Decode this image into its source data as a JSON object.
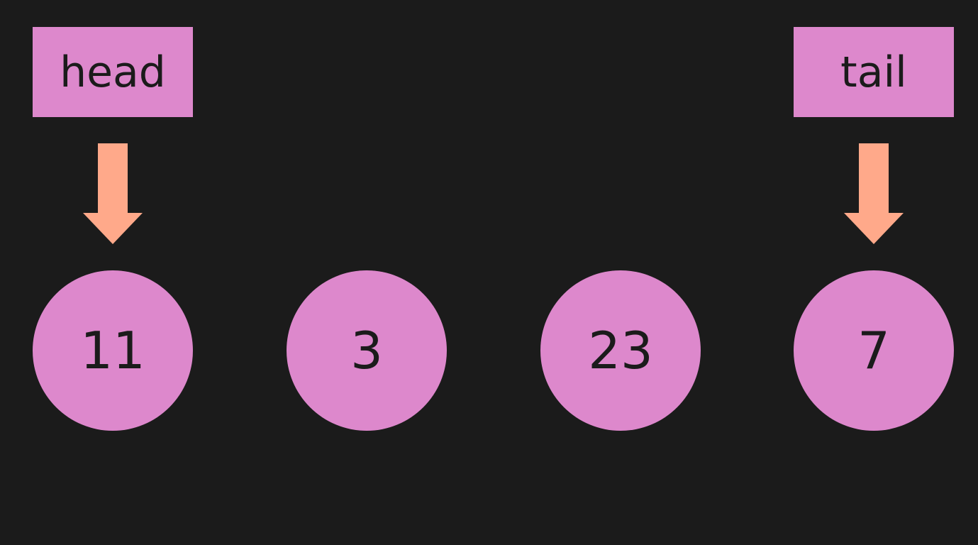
{
  "pointers": {
    "head": {
      "label": "head"
    },
    "tail": {
      "label": "tail"
    }
  },
  "nodes": [
    {
      "value": "11"
    },
    {
      "value": "3"
    },
    {
      "value": "23"
    },
    {
      "value": "7"
    }
  ],
  "colors": {
    "background": "#1b1b1b",
    "box_fill": "#dd88cc",
    "arrow_fill": "#ffa98a",
    "text": "#1b1b1b"
  },
  "icons": {
    "pointer_arrow": "arrow-down-icon"
  }
}
